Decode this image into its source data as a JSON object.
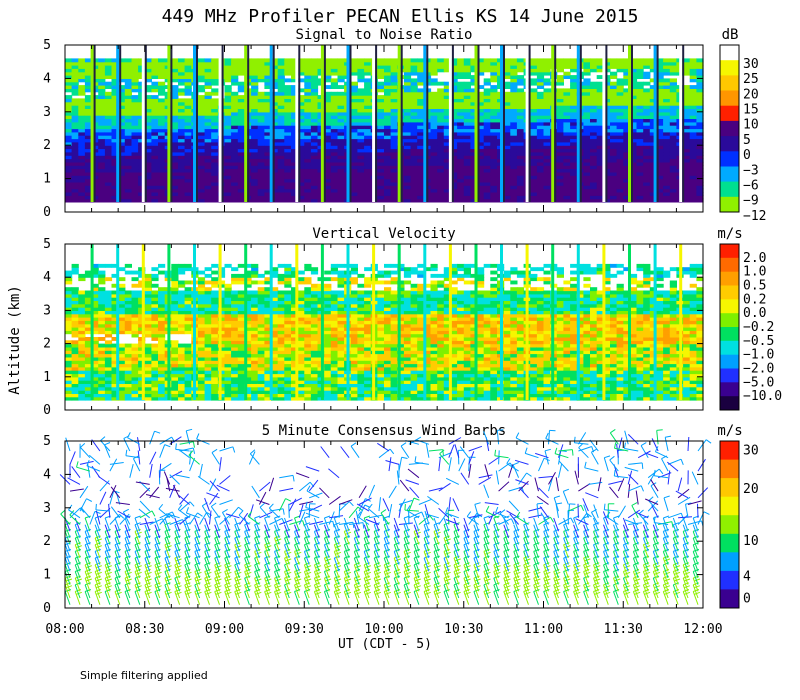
{
  "chart_data": {
    "type": "heatmap",
    "title": "449 MHz Profiler PECAN Ellis KS 14 June 2015",
    "ylabel": "Altitude (km)",
    "xlabel": "UT  (CDT - 5)",
    "x_ticks": [
      "08:00",
      "08:30",
      "09:00",
      "09:30",
      "10:00",
      "10:30",
      "11:00",
      "11:30",
      "12:00"
    ],
    "y_ticks": [
      "0",
      "1",
      "2",
      "3",
      "4",
      "5"
    ],
    "xlim_hours": [
      8,
      12
    ],
    "ylim_km": [
      0,
      5
    ],
    "footnote": "Simple filtering applied",
    "panels": [
      {
        "id": "snr",
        "title": "Signal to Noise Ratio",
        "units": "dB",
        "colorbar": {
          "labels": [
            "30",
            "25",
            "20",
            "15",
            "10",
            "5",
            "0",
            "−3",
            "−6",
            "−9",
            "−12"
          ],
          "colors": [
            "#ffffff",
            "#f6f600",
            "#ffc800",
            "#ff9600",
            "#ff2000",
            "#4a0080",
            "#2a0a9a",
            "#0030ff",
            "#00aaff",
            "#00e090",
            "#90f000"
          ]
        },
        "layers": [
          {
            "z0": 0.3,
            "z1": 1.1,
            "v": 7
          },
          {
            "z0": 1.1,
            "z1": 1.6,
            "v": 4
          },
          {
            "z0": 1.6,
            "z1": 2.0,
            "v": 1
          },
          {
            "z0": 2.0,
            "z1": 2.4,
            "v": -2
          },
          {
            "z0": 2.4,
            "z1": 2.8,
            "v": -6
          },
          {
            "z0": 2.8,
            "z1": 3.3,
            "v": -11
          },
          {
            "z0": 3.3,
            "z1": 3.9,
            "v": -7
          },
          {
            "z0": 3.9,
            "z1": 4.4,
            "v": -11
          },
          {
            "z0": 4.4,
            "z1": 4.6,
            "v": -8
          }
        ]
      },
      {
        "id": "vv",
        "title": "Vertical Velocity",
        "units": "m/s",
        "colorbar": {
          "labels": [
            "2.0",
            "1.0",
            "0.5",
            "0.2",
            "0.0",
            "−0.2",
            "−0.5",
            "−1.0",
            "−2.0",
            "−5.0",
            "−10.0"
          ],
          "colors": [
            "#ff2000",
            "#ff6a00",
            "#ff9f00",
            "#ffcc00",
            "#f6f600",
            "#7ff000",
            "#00e060",
            "#00e0e0",
            "#00a0ff",
            "#2030ff",
            "#3a0090",
            "#1a0040"
          ]
        },
        "layers": [
          {
            "z0": 0.3,
            "z1": 1.2,
            "v": -0.3
          },
          {
            "z0": 1.2,
            "z1": 2.0,
            "v": 0.1
          },
          {
            "z0": 2.0,
            "z1": 2.9,
            "v": 0.3
          },
          {
            "z0": 2.9,
            "z1": 3.6,
            "v": -0.4
          },
          {
            "z0": 3.6,
            "z1": 4.0,
            "v": 0.0
          },
          {
            "z0": 4.0,
            "z1": 4.4,
            "v": -0.6
          }
        ]
      },
      {
        "id": "wind",
        "title": "5 Minute Consensus Wind Barbs",
        "units": "m/s",
        "colorbar": {
          "labels": [
            "30",
            "20",
            "10",
            "4",
            "0"
          ],
          "colors": [
            "#ff2000",
            "#ff8000",
            "#ffc800",
            "#f6f600",
            "#90f000",
            "#00e060",
            "#00a0ff",
            "#2030ff",
            "#3a0090"
          ]
        },
        "layers": [
          {
            "z0": 0.0,
            "z1": 1.0,
            "v": 11
          },
          {
            "z0": 1.0,
            "z1": 2.0,
            "v": 8
          },
          {
            "z0": 2.0,
            "z1": 3.0,
            "v": 5
          },
          {
            "z0": 3.0,
            "z1": 4.0,
            "v": 3
          },
          {
            "z0": 4.0,
            "z1": 5.0,
            "v": 5
          }
        ]
      }
    ]
  }
}
